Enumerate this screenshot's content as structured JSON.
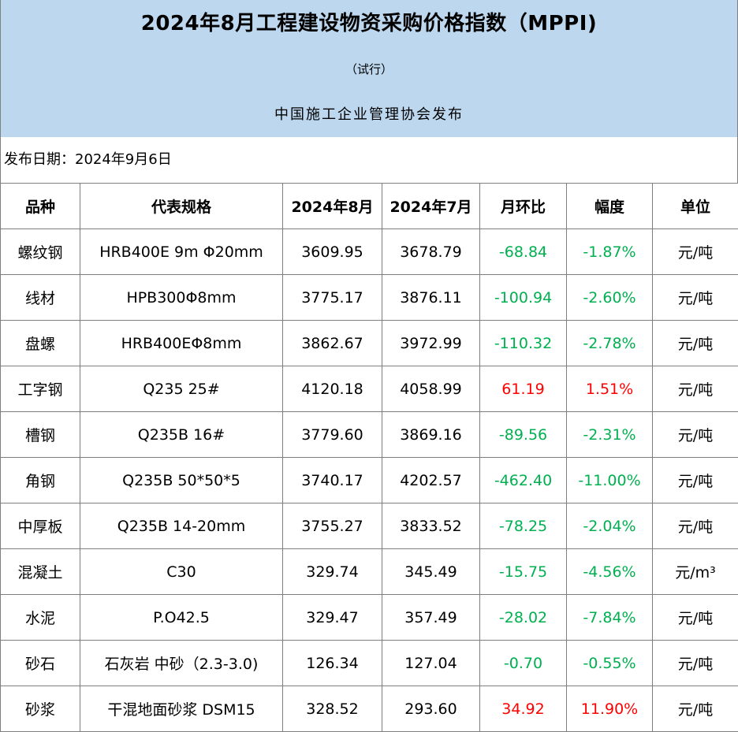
{
  "header": {
    "title": "2024年8月工程建设物资采购价格指数（MPPI)",
    "subtitle": "（试行）",
    "publisher": "中国施工企业管理协会发布"
  },
  "release_date": "发布日期：2024年9月6日",
  "table": {
    "columns": [
      "品种",
      "代表规格",
      "2024年8月",
      "2024年7月",
      "月环比",
      "幅度",
      "单位"
    ],
    "rows": [
      {
        "variety": "螺纹钢",
        "spec": "HRB400E 9m Φ20mm",
        "aug": "3609.95",
        "jul": "3678.79",
        "mom": "-68.84",
        "range": "-1.87%",
        "unit": "元/吨",
        "trend": "down"
      },
      {
        "variety": "线材",
        "spec": "HPB300Φ8mm",
        "aug": "3775.17",
        "jul": "3876.11",
        "mom": "-100.94",
        "range": "-2.60%",
        "unit": "元/吨",
        "trend": "down"
      },
      {
        "variety": "盘螺",
        "spec": "HRB400EΦ8mm",
        "aug": "3862.67",
        "jul": "3972.99",
        "mom": "-110.32",
        "range": "-2.78%",
        "unit": "元/吨",
        "trend": "down"
      },
      {
        "variety": "工字钢",
        "spec": "Q235 25#",
        "aug": "4120.18",
        "jul": "4058.99",
        "mom": "61.19",
        "range": "1.51%",
        "unit": "元/吨",
        "trend": "up"
      },
      {
        "variety": "槽钢",
        "spec": "Q235B 16#",
        "aug": "3779.60",
        "jul": "3869.16",
        "mom": "-89.56",
        "range": "-2.31%",
        "unit": "元/吨",
        "trend": "down"
      },
      {
        "variety": "角钢",
        "spec": "Q235B 50*50*5",
        "aug": "3740.17",
        "jul": "4202.57",
        "mom": "-462.40",
        "range": "-11.00%",
        "unit": "元/吨",
        "trend": "down"
      },
      {
        "variety": "中厚板",
        "spec": "Q235B 14-20mm",
        "aug": "3755.27",
        "jul": "3833.52",
        "mom": "-78.25",
        "range": "-2.04%",
        "unit": "元/吨",
        "trend": "down"
      },
      {
        "variety": "混凝土",
        "spec": "C30",
        "aug": "329.74",
        "jul": "345.49",
        "mom": "-15.75",
        "range": "-4.56%",
        "unit": "元/m³",
        "trend": "down"
      },
      {
        "variety": "水泥",
        "spec": "P.O42.5",
        "aug": "329.47",
        "jul": "357.49",
        "mom": "-28.02",
        "range": "-7.84%",
        "unit": "元/吨",
        "trend": "down"
      },
      {
        "variety": "砂石",
        "spec": "石灰岩 中砂（2.3-3.0)",
        "aug": "126.34",
        "jul": "127.04",
        "mom": "-0.70",
        "range": "-0.55%",
        "unit": "元/吨",
        "trend": "down"
      },
      {
        "variety": "砂浆",
        "spec": "干混地面砂浆 DSM15",
        "aug": "328.52",
        "jul": "293.60",
        "mom": "34.92",
        "range": "11.90%",
        "unit": "元/吨",
        "trend": "up"
      }
    ]
  },
  "colors": {
    "header_bg": "#bdd7ee",
    "decrease": "#00b050",
    "increase": "#ff0000",
    "border": "#7f7f7f"
  }
}
